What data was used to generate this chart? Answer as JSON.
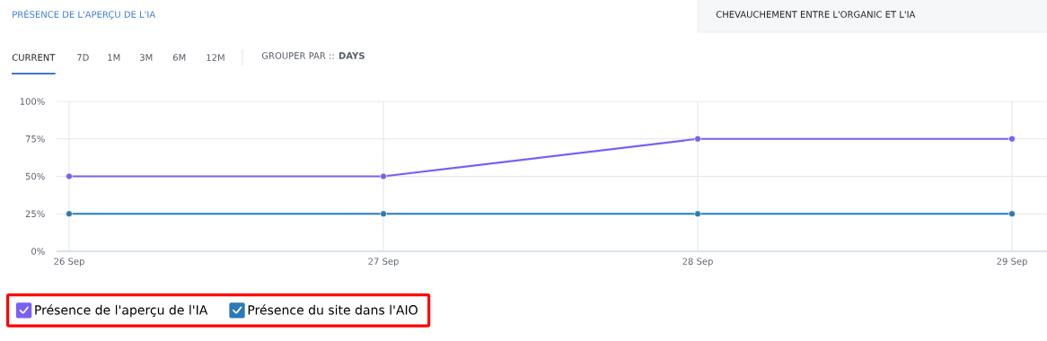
{
  "chart_data": {
    "type": "line",
    "title": "PRÉSENCE DE L'APERÇU DE L'IA",
    "annotations": [
      "CHEVAUCHEMENT ENTRE L'ORGANIC ET L'IA",
      "CURRENT",
      "7D",
      "1M",
      "3M",
      "6M",
      "12M",
      "GROUPER PAR :: **DAYS**"
    ],
    "categories": [
      "26 Sep",
      "27 Sep",
      "28 Sep",
      "29 Sep"
    ],
    "series": [
      {
        "name": "Présence de l'aperçu de l'IA",
        "color": "#7b5ff5",
        "values": [
          50,
          50,
          75,
          75
        ]
      },
      {
        "name": "Présence du site dans l'AIO",
        "color": "#2a7ab9",
        "values": [
          25,
          25,
          25,
          25
        ]
      }
    ],
    "ylim": [
      0,
      100
    ],
    "yticks": [
      {
        "value": 0,
        "label": "0%"
      },
      {
        "value": 25,
        "label": "25%"
      },
      {
        "value": 50,
        "label": "50%"
      },
      {
        "value": 75,
        "label": "75%"
      },
      {
        "value": 100,
        "label": "100%"
      }
    ],
    "grid": true,
    "legend": "bottom left",
    "marker": "circle",
    "line_style": "solid"
  }
}
